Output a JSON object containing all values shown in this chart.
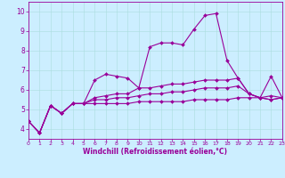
{
  "title": "",
  "xlabel": "Windchill (Refroidissement éolien,°C)",
  "background_color": "#cceeff",
  "line_color": "#990099",
  "grid_color": "#aadddd",
  "xlim": [
    0,
    23
  ],
  "ylim": [
    3.5,
    10.5
  ],
  "xticks": [
    0,
    1,
    2,
    3,
    4,
    5,
    6,
    7,
    8,
    9,
    10,
    11,
    12,
    13,
    14,
    15,
    16,
    17,
    18,
    19,
    20,
    21,
    22,
    23
  ],
  "yticks": [
    4,
    5,
    6,
    7,
    8,
    9,
    10
  ],
  "series": [
    [
      4.4,
      3.8,
      5.2,
      4.8,
      5.3,
      5.3,
      6.5,
      6.8,
      6.7,
      6.6,
      6.1,
      8.2,
      8.4,
      8.4,
      8.3,
      9.1,
      9.8,
      9.9,
      7.5,
      6.6,
      5.8,
      5.6,
      6.7,
      5.6
    ],
    [
      4.4,
      3.8,
      5.2,
      4.8,
      5.3,
      5.3,
      5.6,
      5.7,
      5.8,
      5.8,
      6.1,
      6.1,
      6.2,
      6.3,
      6.3,
      6.4,
      6.5,
      6.5,
      6.5,
      6.6,
      5.8,
      5.6,
      5.7,
      5.6
    ],
    [
      4.4,
      3.8,
      5.2,
      4.8,
      5.3,
      5.3,
      5.5,
      5.5,
      5.6,
      5.6,
      5.7,
      5.8,
      5.8,
      5.9,
      5.9,
      6.0,
      6.1,
      6.1,
      6.1,
      6.2,
      5.8,
      5.6,
      5.5,
      5.6
    ],
    [
      4.4,
      3.8,
      5.2,
      4.8,
      5.3,
      5.3,
      5.3,
      5.3,
      5.3,
      5.3,
      5.4,
      5.4,
      5.4,
      5.4,
      5.4,
      5.5,
      5.5,
      5.5,
      5.5,
      5.6,
      5.6,
      5.6,
      5.5,
      5.6
    ]
  ],
  "marker_size": 2.0,
  "line_width": 0.8,
  "tick_fontsize_x": 4.5,
  "tick_fontsize_y": 5.5,
  "xlabel_fontsize": 5.5
}
